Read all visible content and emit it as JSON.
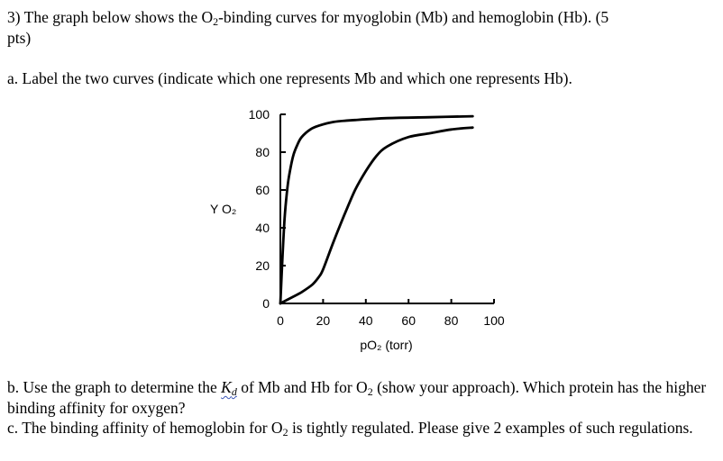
{
  "question": {
    "header_prefix": "3) The graph below shows the O",
    "header_sub": "2",
    "header_suffix": "-binding curves for myoglobin (Mb) and hemoglobin (Hb). (5",
    "header_line2": "pts)",
    "part_a": "a. Label the two curves (indicate which one represents Mb and which one represents Hb).",
    "part_b_1": "b. Use the graph to determine the ",
    "part_b_kd": "Kd",
    "part_b_2": " of Mb and Hb for O",
    "part_b_sub": "2",
    "part_b_3": " (show your approach). Which protein has the higher binding affinity for oxygen?",
    "part_c_1": "c. The binding affinity of hemoglobin for O",
    "part_c_sub": "2",
    "part_c_2": " is tightly regulated. Please give 2 examples of such regulations."
  },
  "chart_data": {
    "type": "line",
    "xlabel": "pO₂ (torr)",
    "ylabel": "Y O₂",
    "xlim": [
      0,
      100
    ],
    "ylim": [
      0,
      100
    ],
    "x_ticks": [
      "0",
      "20",
      "40",
      "60",
      "80",
      "100"
    ],
    "y_ticks": [
      "0",
      "20",
      "40",
      "60",
      "80",
      "100"
    ],
    "grid": false,
    "series": [
      {
        "x": [
          0,
          1,
          2,
          3,
          4,
          6,
          8,
          10,
          14,
          18,
          25,
          35,
          50,
          70,
          90
        ],
        "y": [
          0,
          25,
          45,
          58,
          67,
          78,
          84,
          88,
          92,
          94,
          96,
          97,
          98,
          98.5,
          99
        ]
      },
      {
        "x": [
          0,
          5,
          10,
          15,
          18,
          20,
          25,
          30,
          35,
          40,
          45,
          50,
          60,
          70,
          80,
          90
        ],
        "y": [
          0,
          3,
          6,
          10,
          14,
          18,
          33,
          47,
          60,
          70,
          78,
          83,
          88,
          90,
          92,
          93
        ]
      }
    ]
  }
}
